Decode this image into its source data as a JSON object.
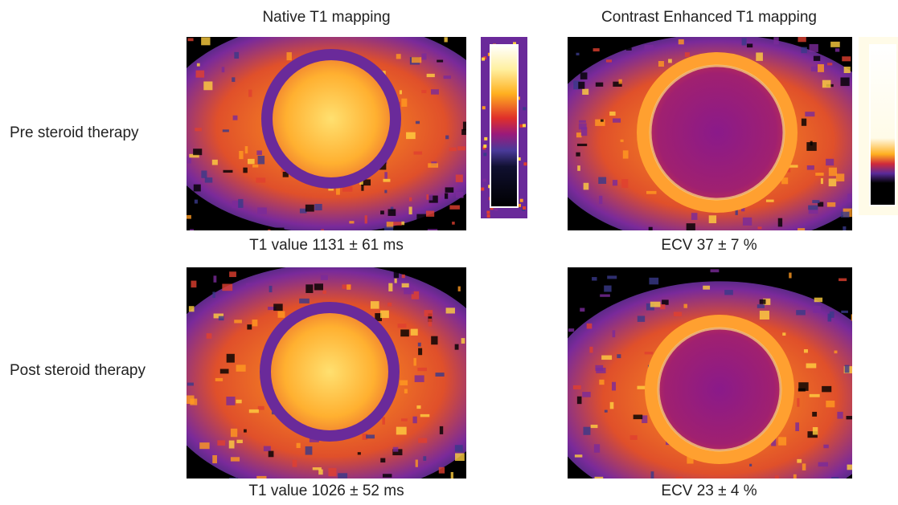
{
  "columns": [
    "Native T1 mapping",
    "Contrast Enhanced T1 mapping"
  ],
  "rows": [
    {
      "label": "Pre steroid therapy",
      "captions": [
        "T1 value 1131 ± 61 ms",
        "ECV 37 ± 7 %"
      ]
    },
    {
      "label": "Post steroid therapy",
      "captions": [
        "T1 value 1026 ± 52 ms",
        "ECV 23 ± 4 %"
      ]
    }
  ]
}
